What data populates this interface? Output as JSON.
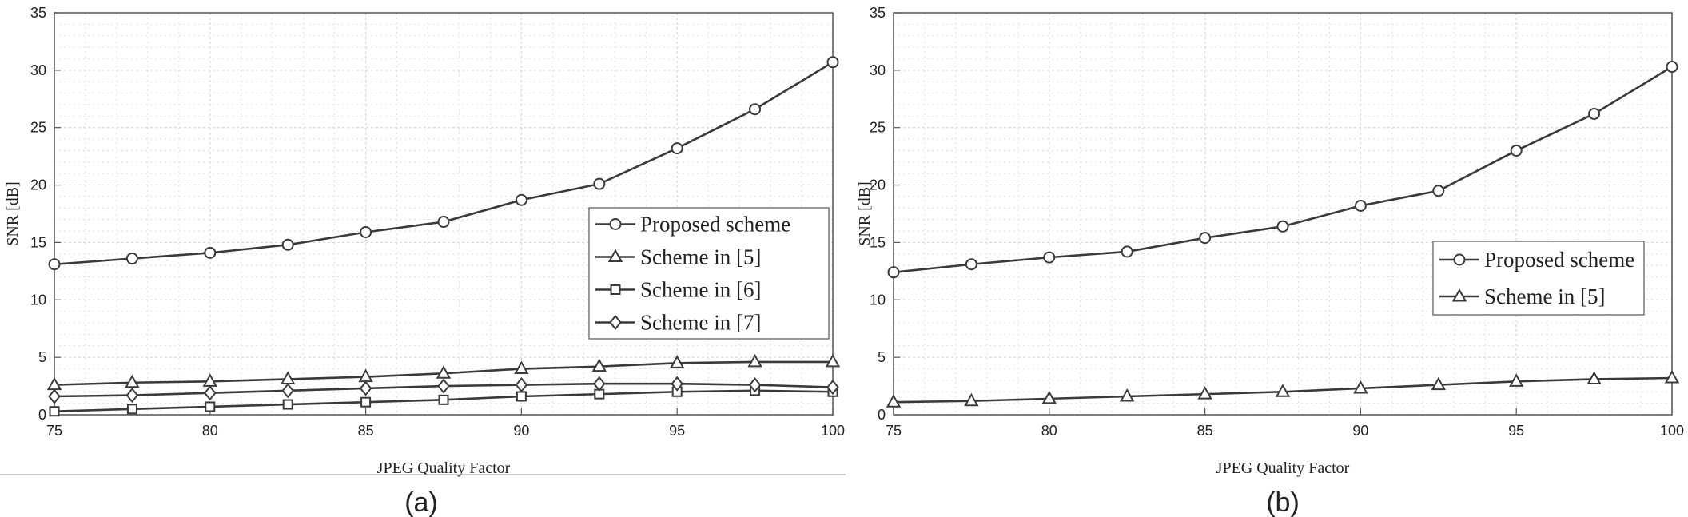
{
  "chart_data": [
    {
      "type": "line",
      "panel_label": "(a)",
      "title": "",
      "xlabel": "JPEG Quality Factor",
      "ylabel": "SNR [dB]",
      "xlim": [
        75,
        100
      ],
      "ylim": [
        0,
        35
      ],
      "xticks": [
        75,
        80,
        85,
        90,
        95,
        100
      ],
      "yticks": [
        0,
        5,
        10,
        15,
        20,
        25,
        30,
        35
      ],
      "grid": true,
      "legend_position": "center-right",
      "x": [
        75,
        77.5,
        80,
        82.5,
        85,
        87.5,
        90,
        92.5,
        95,
        97.5,
        100
      ],
      "series": [
        {
          "name": "Proposed scheme",
          "marker": "circle",
          "values": [
            13.1,
            13.6,
            14.1,
            14.8,
            15.9,
            16.8,
            18.7,
            20.1,
            23.2,
            26.6,
            30.7
          ]
        },
        {
          "name": "Scheme in [5]",
          "marker": "triangle",
          "values": [
            2.6,
            2.8,
            2.9,
            3.1,
            3.3,
            3.6,
            4.0,
            4.2,
            4.5,
            4.6,
            4.6
          ]
        },
        {
          "name": "Scheme in [6]",
          "marker": "square",
          "values": [
            0.3,
            0.5,
            0.7,
            0.9,
            1.1,
            1.3,
            1.6,
            1.8,
            2.0,
            2.1,
            2.0
          ]
        },
        {
          "name": "Scheme in [7]",
          "marker": "diamond",
          "values": [
            1.6,
            1.7,
            1.9,
            2.1,
            2.3,
            2.5,
            2.6,
            2.7,
            2.7,
            2.6,
            2.4
          ]
        }
      ]
    },
    {
      "type": "line",
      "panel_label": "(b)",
      "title": "",
      "xlabel": "JPEG Quality Factor",
      "ylabel": "SNR [dB]",
      "xlim": [
        75,
        100
      ],
      "ylim": [
        0,
        35
      ],
      "xticks": [
        75,
        80,
        85,
        90,
        95,
        100
      ],
      "yticks": [
        0,
        5,
        10,
        15,
        20,
        25,
        30,
        35
      ],
      "grid": true,
      "legend_position": "center-right",
      "x": [
        75,
        77.5,
        80,
        82.5,
        85,
        87.5,
        90,
        92.5,
        95,
        97.5,
        100
      ],
      "series": [
        {
          "name": "Proposed scheme",
          "marker": "circle",
          "values": [
            12.4,
            13.1,
            13.7,
            14.2,
            15.4,
            16.4,
            18.2,
            19.5,
            23.0,
            26.2,
            30.3
          ]
        },
        {
          "name": "Scheme in [5]",
          "marker": "triangle",
          "values": [
            1.1,
            1.2,
            1.4,
            1.6,
            1.8,
            2.0,
            2.3,
            2.6,
            2.9,
            3.1,
            3.2
          ]
        }
      ]
    }
  ],
  "style": {
    "line_color": "#3a3a3a",
    "grid_color": "#d8d8d8",
    "axis_color": "#555555",
    "background": "#ffffff"
  }
}
